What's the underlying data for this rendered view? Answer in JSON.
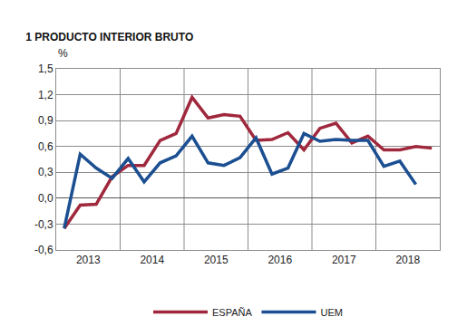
{
  "chart_data": {
    "type": "line",
    "title": "1 PRODUCTO INTERIOR BRUTO",
    "ylabel": "%",
    "categories": [
      null,
      "2013",
      null,
      null,
      null,
      "2014",
      null,
      null,
      null,
      "2015",
      null,
      null,
      null,
      "2016",
      null,
      null,
      null,
      "2017",
      null,
      null,
      null,
      "2018",
      null,
      null
    ],
    "series": [
      {
        "name": "ESPAÑA",
        "color": "#a0283c",
        "values": [
          -0.35,
          -0.08,
          -0.07,
          0.25,
          0.38,
          0.38,
          0.67,
          0.75,
          1.17,
          0.93,
          0.97,
          0.95,
          0.67,
          0.68,
          0.76,
          0.56,
          0.81,
          0.87,
          0.64,
          0.72,
          0.56,
          0.56,
          0.6,
          0.58
        ]
      },
      {
        "name": "UEM",
        "color": "#1b4f91",
        "values": [
          -0.35,
          0.51,
          0.35,
          0.23,
          0.46,
          0.19,
          0.41,
          0.49,
          0.72,
          0.41,
          0.38,
          0.47,
          0.7,
          0.28,
          0.35,
          0.75,
          0.66,
          0.68,
          0.67,
          0.67,
          0.37,
          0.43,
          0.16,
          null
        ]
      }
    ],
    "ylim": [
      -0.6,
      1.5
    ],
    "yticks": [
      {
        "value": -0.6,
        "label": "-0,6"
      },
      {
        "value": -0.3,
        "label": "-0,3"
      },
      {
        "value": 0,
        "label": "0,0"
      },
      {
        "value": 0.3,
        "label": "0,3"
      },
      {
        "value": 0.6,
        "label": "0,6"
      },
      {
        "value": 0.9,
        "label": "0,9"
      },
      {
        "value": 1.2,
        "label": "1,2"
      },
      {
        "value": 1.5,
        "label": "1,5"
      }
    ],
    "grid": true,
    "legend": "bottom"
  }
}
